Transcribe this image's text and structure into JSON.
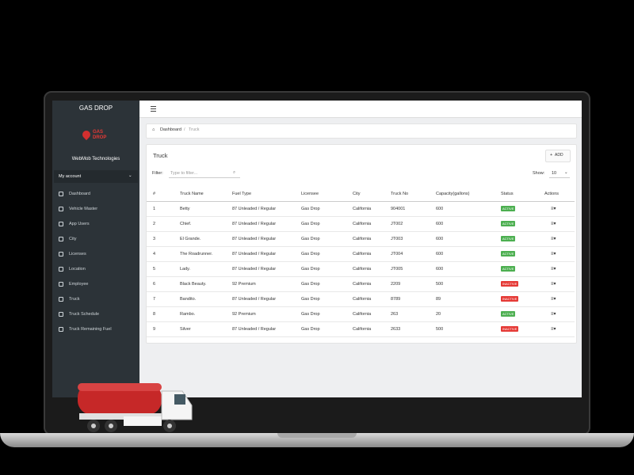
{
  "sidebar": {
    "brand": "GAS DROP",
    "logo_text": "GAS DROP",
    "company": "WebMob Technologies",
    "account": "My account",
    "nav": [
      "Dashboard",
      "Vehicle Master",
      "App Users",
      "City",
      "Licenses",
      "Location",
      "Employee",
      "Truck",
      "Truck Schedule",
      "Truck Remaining Fuel"
    ]
  },
  "breadcrumb": {
    "home": "Dashboard",
    "separator": "/",
    "current": "Truck"
  },
  "card": {
    "title": "Truck",
    "add_button": "ADD",
    "filter_label": "Filter:",
    "filter_placeholder": "Type to filter...",
    "show_label": "Show:",
    "show_value": "10"
  },
  "table": {
    "headers": [
      "#",
      "Truck Name",
      "Fuel Type",
      "Licensee",
      "City",
      "Truck No",
      "Capacity(gallons)",
      "Status",
      "Actions"
    ],
    "rows": [
      [
        "1",
        "Betty",
        "87 Unleaded / Regular",
        "Gas Drop",
        "California",
        "904001",
        "600",
        {
          "label": "ACTIVE",
          "color": "#4caf50"
        }
      ],
      [
        "2",
        "Chief.",
        "87 Unleaded / Regular",
        "Gas Drop",
        "California",
        "JT002",
        "600",
        {
          "label": "ACTIVE",
          "color": "#4caf50"
        }
      ],
      [
        "3",
        "El Grande.",
        "87 Unleaded / Regular",
        "Gas Drop",
        "California",
        "JT003",
        "600",
        {
          "label": "ACTIVE",
          "color": "#4caf50"
        }
      ],
      [
        "4",
        "The Roadrunner.",
        "87 Unleaded / Regular",
        "Gas Drop",
        "California",
        "JT004",
        "600",
        {
          "label": "ACTIVE",
          "color": "#4caf50"
        }
      ],
      [
        "5",
        "Lady.",
        "87 Unleaded / Regular",
        "Gas Drop",
        "California",
        "JT005",
        "600",
        {
          "label": "ACTIVE",
          "color": "#4caf50"
        }
      ],
      [
        "6",
        "Black Beauty.",
        "92 Premium",
        "Gas Drop",
        "California",
        "2209",
        "500",
        {
          "label": "INACTIVE",
          "color": "#e53935"
        }
      ],
      [
        "7",
        "Bandito.",
        "87 Unleaded / Regular",
        "Gas Drop",
        "California",
        "8789",
        "89",
        {
          "label": "INACTIVE",
          "color": "#e53935"
        }
      ],
      [
        "8",
        "Rambo.",
        "92 Premium",
        "Gas Drop",
        "California",
        "263",
        "20",
        {
          "label": "ACTIVE",
          "color": "#4caf50"
        }
      ],
      [
        "9",
        "Silver",
        "87 Unleaded / Regular",
        "Gas Drop",
        "California",
        "2633",
        "500",
        {
          "label": "INACTIVE",
          "color": "#e53935"
        }
      ]
    ]
  }
}
